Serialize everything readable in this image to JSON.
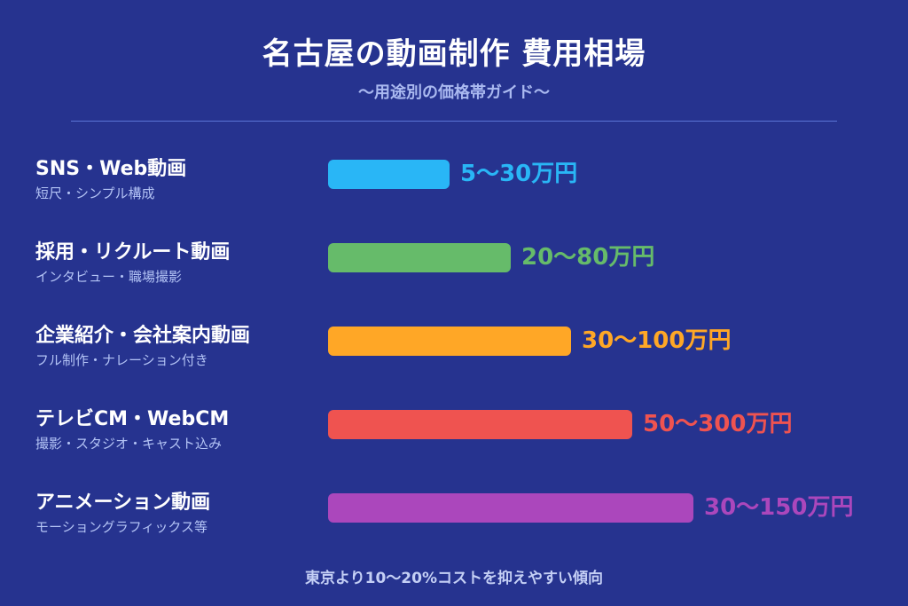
{
  "header": {
    "title": "名古屋の動画制作 費用相場",
    "subtitle": "〜用途別の価格帯ガイド〜"
  },
  "footer": {
    "note": "東京より10〜20%コストを抑えやすい傾向"
  },
  "chart_data": {
    "type": "bar",
    "orientation": "horizontal",
    "categories": [
      "SNS・Web動画",
      "採用・リクルート動画",
      "企業紹介・会社案内動画",
      "テレビCM・WebCM",
      "アニメーション動画"
    ],
    "subcategories": [
      "短尺・シンプル構成",
      "インタビュー・職場撮影",
      "フル制作・ナレーション付き",
      "撮影・スタジオ・キャスト込み",
      "モーショングラフィックス等"
    ],
    "value_labels": [
      "5〜30万円",
      "20〜80万円",
      "30〜100万円",
      "50〜300万円",
      "30〜150万円"
    ],
    "bar_levels": [
      0.2,
      0.3,
      0.4,
      0.5,
      0.6
    ],
    "colors": [
      "#29b6f6",
      "#66bb6a",
      "#ffa726",
      "#ef5350",
      "#ab47bc"
    ],
    "grid": false,
    "legend": "none"
  }
}
